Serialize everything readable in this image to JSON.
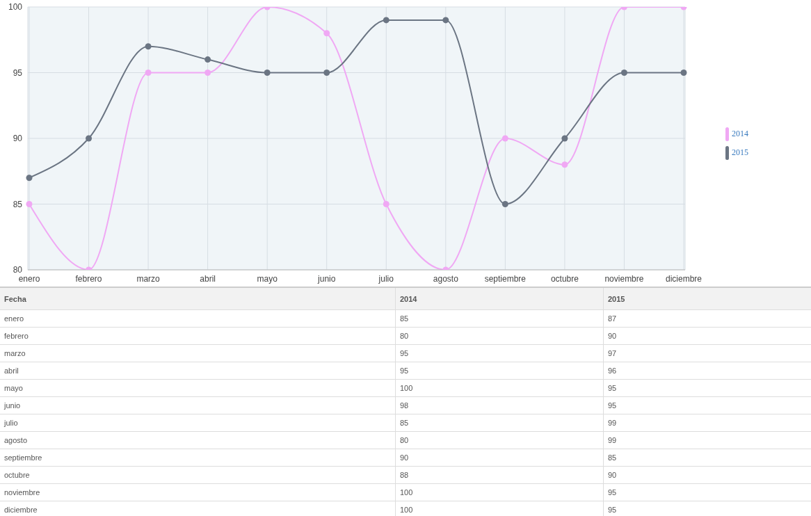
{
  "chart_data": [
    {
      "type": "line",
      "categories": [
        "enero",
        "febrero",
        "marzo",
        "abril",
        "mayo",
        "junio",
        "julio",
        "agosto",
        "septiembre",
        "octubre",
        "noviembre",
        "diciembre"
      ],
      "series": [
        {
          "name": "2014",
          "color": "#f0a8f4",
          "values": [
            85,
            80,
            95,
            95,
            100,
            98,
            85,
            80,
            90,
            88,
            100,
            100
          ]
        },
        {
          "name": "2015",
          "color": "#6b7583",
          "values": [
            87,
            90,
            97,
            96,
            95,
            95,
            99,
            99,
            85,
            90,
            95,
            95
          ]
        }
      ],
      "ylim": [
        80,
        100
      ],
      "yticks": [
        80,
        85,
        90,
        95,
        100
      ],
      "grid": true,
      "legend": "right",
      "marker": "circle"
    },
    {
      "type": "other",
      "xlabel": "Fecha",
      "data_labels": true,
      "categories": [
        "enero",
        "febrero",
        "marzo",
        "abril",
        "mayo",
        "junio",
        "julio",
        "agosto",
        "septiembre",
        "octubre",
        "noviembre",
        "diciembre"
      ],
      "series": [
        {
          "name": "2014",
          "values": [
            85,
            80,
            95,
            95,
            100,
            98,
            85,
            80,
            90,
            88,
            100,
            100
          ]
        },
        {
          "name": "2015",
          "values": [
            87,
            90,
            97,
            96,
            95,
            95,
            99,
            99,
            85,
            90,
            95,
            95
          ]
        }
      ]
    }
  ]
}
